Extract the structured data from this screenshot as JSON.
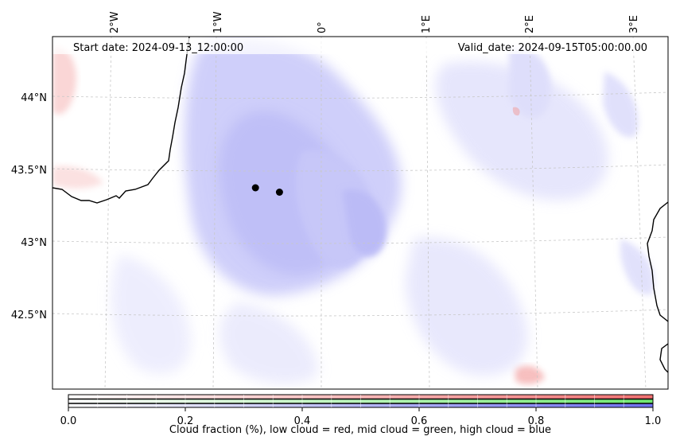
{
  "header": {
    "start_date": "Start date: 2024-09-13_12:00:00",
    "valid_date": "Valid_date: 2024-09-15T05:00:00.00"
  },
  "axes": {
    "lon_labels": [
      "2°W",
      "1°W",
      "0°",
      "1°E",
      "2°E",
      "3°E"
    ],
    "lat_labels": [
      "44°N",
      "43.5°N",
      "43°N",
      "42.5°N"
    ]
  },
  "markers": [
    {
      "name": "marker-point-1",
      "lon": -0.63,
      "lat": 43.39
    },
    {
      "name": "marker-point-2",
      "lon": -0.4,
      "lat": 43.36
    }
  ],
  "colorbar": {
    "ticks": [
      "0.0",
      "0.2",
      "0.4",
      "0.6",
      "0.8",
      "1.0"
    ],
    "label": "Cloud fraction (%), low cloud = red, mid cloud = green, high cloud = blue",
    "colors": {
      "low": "#f07878",
      "mid": "#78e878",
      "high": "#7878f0"
    }
  },
  "colors": {
    "cloud_high": "#6e6ef5",
    "cloud_low": "#f08080",
    "coastline": "#000000",
    "gridline": "#c8c8c8"
  }
}
